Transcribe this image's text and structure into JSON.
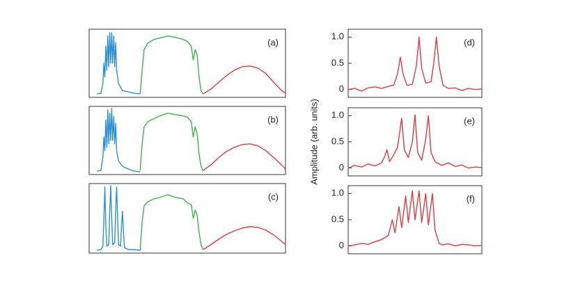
{
  "chart_data": [
    {
      "type": "line",
      "label": "(a)",
      "xlim": [
        0,
        100
      ],
      "ylim": [
        0,
        1
      ],
      "series": [
        {
          "color": "#2b8fd2",
          "x": [
            4,
            6,
            7,
            7.5,
            8,
            8.5,
            9,
            9.5,
            10,
            10.5,
            11,
            11.5,
            12,
            12.5,
            13,
            13.5,
            14,
            15,
            17,
            20,
            23,
            26
          ],
          "values": [
            0.05,
            0.06,
            0.2,
            0.5,
            0.3,
            0.75,
            0.4,
            0.9,
            0.45,
            0.95,
            0.5,
            0.95,
            0.5,
            0.9,
            0.45,
            0.8,
            0.4,
            0.2,
            0.1,
            0.08,
            0.06,
            0.05
          ]
        },
        {
          "color": "#3fb34c",
          "x": [
            26,
            27,
            28,
            30,
            33,
            36,
            40,
            44,
            48,
            50,
            52,
            53,
            54,
            55,
            56,
            57,
            58
          ],
          "values": [
            0.05,
            0.4,
            0.7,
            0.8,
            0.85,
            0.87,
            0.9,
            0.88,
            0.85,
            0.82,
            0.75,
            0.55,
            0.7,
            0.62,
            0.3,
            0.1,
            0.05
          ]
        },
        {
          "color": "#e03a40",
          "x": [
            58,
            62,
            66,
            70,
            74,
            78,
            82,
            86,
            90,
            94,
            98,
            100
          ],
          "values": [
            0.05,
            0.12,
            0.22,
            0.32,
            0.4,
            0.45,
            0.46,
            0.43,
            0.35,
            0.22,
            0.1,
            0.06
          ]
        }
      ]
    },
    {
      "type": "line",
      "label": "(b)",
      "xlim": [
        0,
        100
      ],
      "ylim": [
        0,
        1
      ],
      "series": [
        {
          "color": "#2b8fd2",
          "x": [
            4,
            6,
            7,
            7.5,
            8,
            8.5,
            9,
            9.5,
            10,
            10.5,
            11,
            11.5,
            12,
            12.5,
            13,
            13.5,
            14,
            15,
            17,
            20,
            23,
            26
          ],
          "values": [
            0.05,
            0.06,
            0.25,
            0.55,
            0.35,
            0.8,
            0.4,
            0.95,
            0.45,
            0.9,
            0.5,
            0.97,
            0.5,
            0.85,
            0.45,
            0.75,
            0.35,
            0.2,
            0.12,
            0.08,
            0.05,
            0.04
          ]
        },
        {
          "color": "#3fb34c",
          "x": [
            26,
            27,
            28,
            30,
            33,
            36,
            40,
            44,
            48,
            50,
            52,
            53,
            54,
            55,
            56,
            57,
            58
          ],
          "values": [
            0.06,
            0.45,
            0.7,
            0.78,
            0.82,
            0.86,
            0.9,
            0.88,
            0.86,
            0.84,
            0.78,
            0.55,
            0.7,
            0.6,
            0.3,
            0.12,
            0.05
          ]
        },
        {
          "color": "#e03a40",
          "x": [
            58,
            62,
            66,
            70,
            74,
            78,
            82,
            86,
            90,
            94,
            98,
            100
          ],
          "values": [
            0.06,
            0.14,
            0.25,
            0.34,
            0.4,
            0.44,
            0.45,
            0.42,
            0.35,
            0.25,
            0.14,
            0.08
          ]
        }
      ]
    },
    {
      "type": "line",
      "label": "(c)",
      "xlim": [
        0,
        100
      ],
      "ylim": [
        0,
        1
      ],
      "series": [
        {
          "color": "#2b8fd2",
          "x": [
            4,
            6,
            7,
            7.5,
            8,
            8.5,
            9,
            10,
            10.5,
            11,
            11.5,
            12,
            13,
            13.5,
            14,
            14.5,
            15,
            16,
            16.5,
            17,
            17.5,
            18,
            20,
            23,
            26
          ],
          "values": [
            0.04,
            0.05,
            0.1,
            0.5,
            0.95,
            0.4,
            0.1,
            0.12,
            0.6,
            0.97,
            0.5,
            0.12,
            0.15,
            0.6,
            0.95,
            0.5,
            0.12,
            0.1,
            0.4,
            0.6,
            0.3,
            0.08,
            0.05,
            0.05,
            0.04
          ]
        },
        {
          "color": "#3fb34c",
          "x": [
            26,
            27,
            28,
            30,
            33,
            36,
            40,
            44,
            48,
            50,
            52,
            53,
            54,
            55,
            56,
            57,
            58
          ],
          "values": [
            0.04,
            0.45,
            0.68,
            0.74,
            0.78,
            0.8,
            0.84,
            0.8,
            0.78,
            0.72,
            0.7,
            0.5,
            0.62,
            0.55,
            0.3,
            0.12,
            0.05
          ]
        },
        {
          "color": "#e03a40",
          "x": [
            58,
            62,
            66,
            70,
            74,
            78,
            82,
            86,
            90,
            94,
            98,
            100
          ],
          "values": [
            0.05,
            0.12,
            0.2,
            0.27,
            0.32,
            0.36,
            0.38,
            0.37,
            0.33,
            0.26,
            0.17,
            0.12
          ]
        }
      ]
    },
    {
      "type": "line",
      "label": "(d)",
      "xlim": [
        0,
        100
      ],
      "ylim": [
        -0.15,
        1.15
      ],
      "yticks": [
        0,
        0.5,
        {
          "value": 1,
          "label": "1.0"
        }
      ],
      "series": [
        {
          "color": "#e03a40",
          "x": [
            0,
            5,
            10,
            15,
            20,
            25,
            30,
            34,
            37,
            39,
            41,
            44,
            48,
            51,
            53,
            55,
            58,
            62,
            64,
            66,
            68,
            71,
            75,
            80,
            85,
            90,
            95,
            100
          ],
          "values": [
            0,
            0.02,
            -0.03,
            0.03,
            0.05,
            0.02,
            0.06,
            0.08,
            0.3,
            0.62,
            0.3,
            0.08,
            0.1,
            0.45,
            1.0,
            0.4,
            0.12,
            0.15,
            0.5,
            1.0,
            0.45,
            0.08,
            0.02,
            0.03,
            -0.02,
            0.02,
            0,
            0.01
          ]
        }
      ]
    },
    {
      "type": "line",
      "label": "(e)",
      "xlim": [
        0,
        100
      ],
      "ylim": [
        -0.15,
        1.15
      ],
      "yticks": [
        0,
        0.5,
        {
          "value": 1,
          "label": "1.0"
        }
      ],
      "ylabel": "Amplitude (arb. units)",
      "series": [
        {
          "color": "#e03a40",
          "x": [
            0,
            5,
            10,
            15,
            20,
            25,
            27,
            29,
            31,
            34,
            37,
            40,
            42,
            45,
            48,
            50,
            52,
            55,
            58,
            60,
            62,
            65,
            70,
            75,
            80,
            85,
            90,
            95,
            100
          ],
          "values": [
            0,
            0.05,
            0.02,
            0.08,
            0.04,
            0.1,
            0.2,
            0.35,
            0.12,
            0.25,
            0.4,
            0.95,
            0.35,
            0.2,
            0.5,
            1.02,
            0.3,
            0.15,
            0.55,
            1.0,
            0.3,
            0.12,
            0.05,
            0.1,
            0.03,
            0.06,
            0,
            0.02,
            0.01
          ]
        }
      ]
    },
    {
      "type": "line",
      "label": "(f)",
      "xlim": [
        0,
        100
      ],
      "ylim": [
        -0.15,
        1.15
      ],
      "yticks": [
        0,
        0.5,
        {
          "value": 1,
          "label": "1.0"
        }
      ],
      "series": [
        {
          "color": "#e03a40",
          "x": [
            0,
            5,
            10,
            15,
            20,
            25,
            30,
            33,
            35,
            38,
            40,
            43,
            45,
            48,
            50,
            53,
            55,
            58,
            60,
            63,
            65,
            68,
            70,
            75,
            80,
            85,
            90,
            95,
            100
          ],
          "values": [
            0,
            0.02,
            0.05,
            0.03,
            0.08,
            0.12,
            0.2,
            0.5,
            0.25,
            0.75,
            0.35,
            0.95,
            0.45,
            1.05,
            0.5,
            1.05,
            0.45,
            1.0,
            0.4,
            1.0,
            0.3,
            0.05,
            0.02,
            0.04,
            0,
            0.03,
            0.02,
            0,
            0.01
          ]
        }
      ]
    }
  ]
}
